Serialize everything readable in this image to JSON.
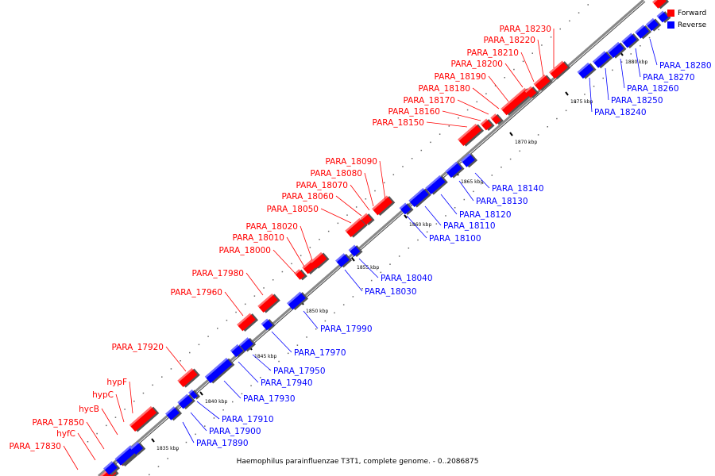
{
  "caption": "Haemophilus parainfluenzae T3T1, complete genome. - 0..2086875",
  "legend": {
    "forward_label": "Forward",
    "reverse_label": "Reverse",
    "forward_color": "#ff0000",
    "reverse_color": "#0000ff"
  },
  "colors": {
    "forward": "#ff0000",
    "reverse": "#0000ff",
    "backbone": "#888888"
  },
  "kbp_markers": [
    "1835 kbp",
    "1840 kbp",
    "1845 kbp",
    "1850 kbp",
    "1855 kbp",
    "1860 kbp",
    "1865 kbp",
    "1870 kbp",
    "1875 kbp",
    "1880 kbp"
  ],
  "forward_genes": [
    "PARA_17830",
    "hyfC",
    "PARA_17850",
    "hycB",
    "hypC",
    "hypF",
    "PARA_17920",
    "PARA_17960",
    "PARA_17980",
    "PARA_18000",
    "PARA_18010",
    "PARA_18020",
    "PARA_18050",
    "PARA_18060",
    "PARA_18070",
    "PARA_18080",
    "PARA_18090",
    "PARA_18150",
    "PARA_18160",
    "PARA_18170",
    "PARA_18180",
    "PARA_18190",
    "PARA_18200",
    "PARA_18210",
    "PARA_18220",
    "PARA_18230"
  ],
  "reverse_genes": [
    "PARA_17890",
    "PARA_17900",
    "PARA_17910",
    "PARA_17930",
    "PARA_17940",
    "PARA_17950",
    "PARA_17970",
    "PARA_17990",
    "PARA_18030",
    "PARA_18040",
    "PARA_18100",
    "PARA_18110",
    "PARA_18120",
    "PARA_18130",
    "PARA_18140",
    "PARA_18240",
    "PARA_18250",
    "PARA_18260",
    "PARA_18270",
    "PARA_18280"
  ]
}
